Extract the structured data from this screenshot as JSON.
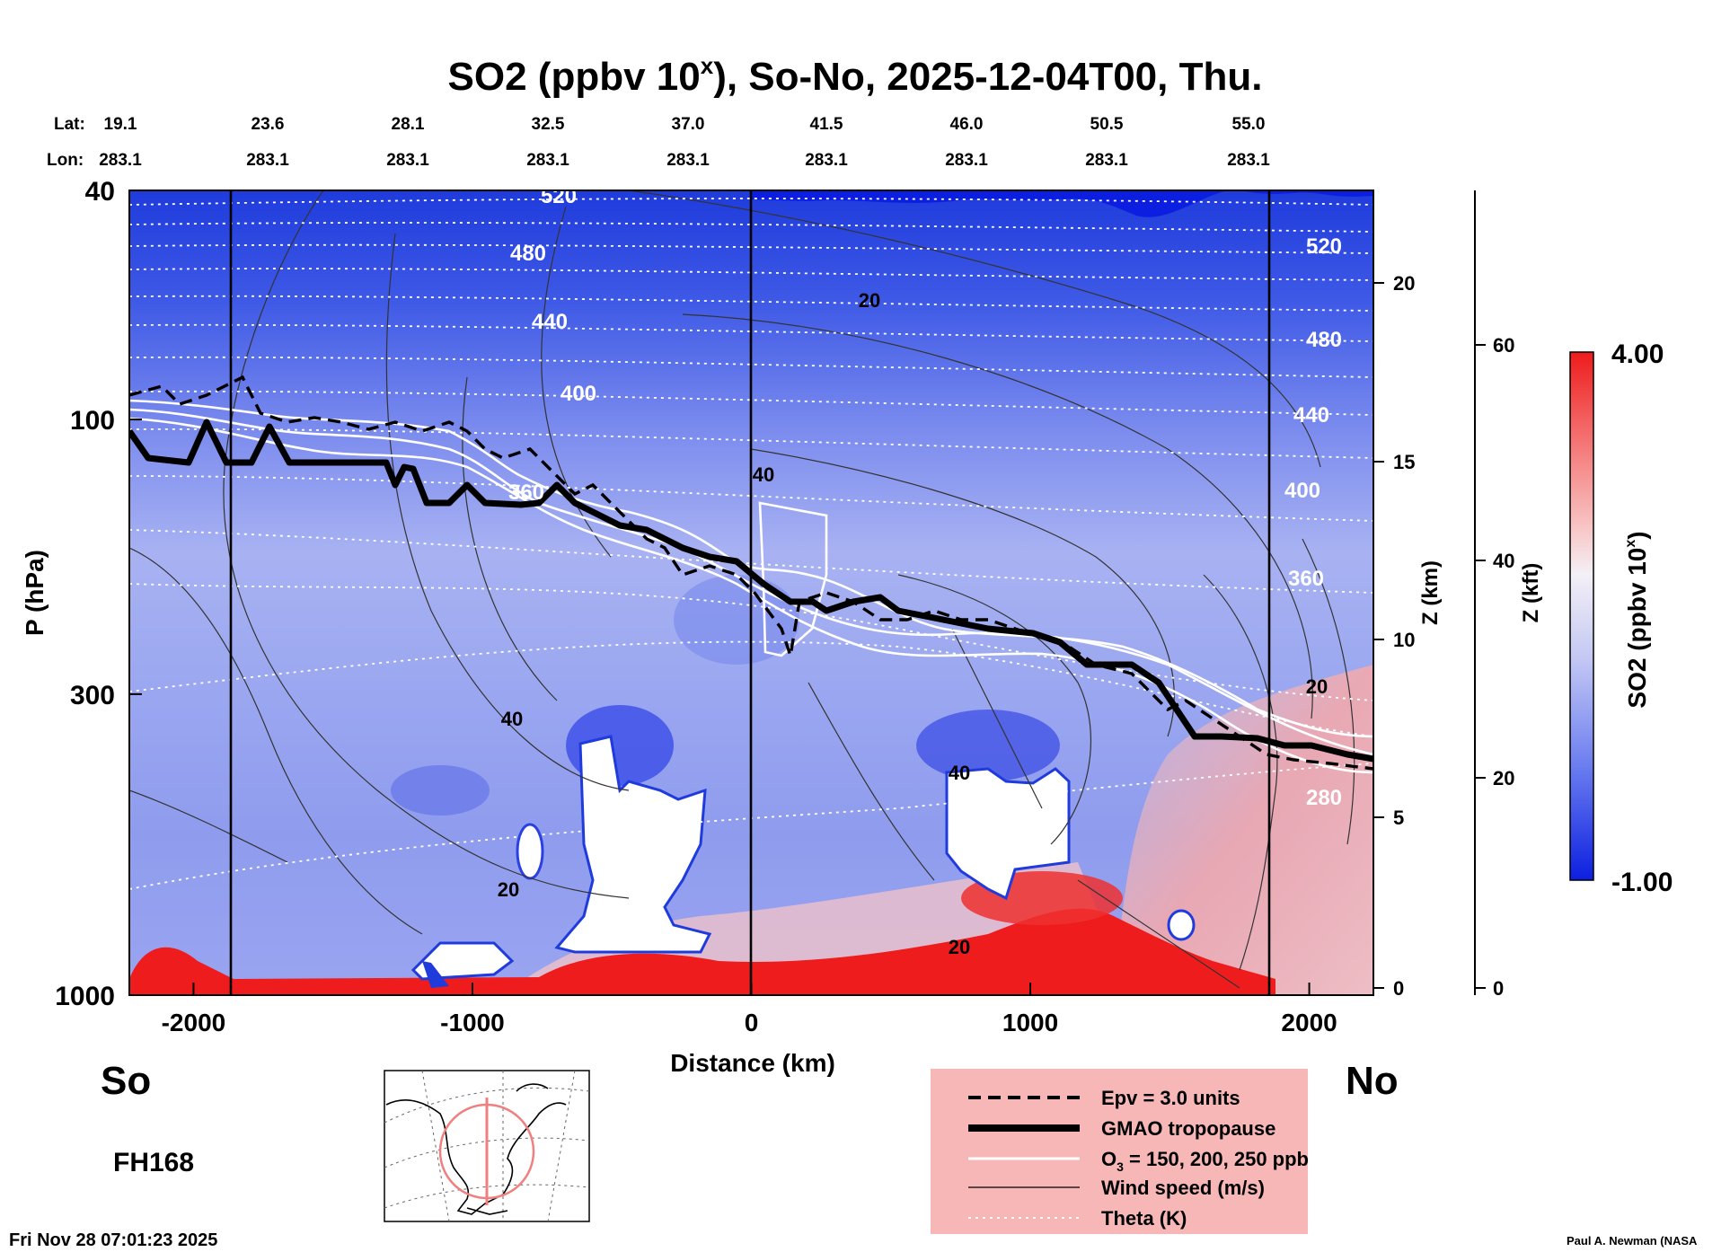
{
  "chart_data": {
    "type": "heatmap",
    "title_main": "SO2 (ppbv 10",
    "title_exp": "x",
    "title_rest": "), So-No, 2025-12-04T00, Thu.",
    "xlabel": "Distance (km)",
    "ylabel": "P (hPa)",
    "y2label": "Z (km)",
    "y3label": "Z (kft)",
    "xlim": [
      -2230,
      2230
    ],
    "x_ticks": [
      "-2000",
      "-1000",
      "0",
      "1000",
      "2000"
    ],
    "x_tick_values": [
      -2000,
      -1000,
      0,
      1000,
      2000
    ],
    "y_ticks": [
      "40",
      "100",
      "300",
      "1000"
    ],
    "y_tick_values": [
      40,
      100,
      300,
      1000
    ],
    "ylim_hpa": [
      1000,
      40
    ],
    "z_km_ticks": [
      "20",
      "15",
      "10",
      "5",
      "0"
    ],
    "z_kft_ticks": [
      "60",
      "40",
      "20",
      "0"
    ],
    "lat_label": "Lat:",
    "lon_label": "Lon:",
    "lats": [
      "19.1",
      "23.6",
      "28.1",
      "32.5",
      "37.0",
      "41.5",
      "46.0",
      "50.5",
      "55.0"
    ],
    "lons": [
      "283.1",
      "283.1",
      "283.1",
      "283.1",
      "283.1",
      "283.1",
      "283.1",
      "283.1",
      "283.1"
    ],
    "section_start": "So",
    "section_end": "No",
    "theta_labels": [
      "520",
      "480",
      "440",
      "400",
      "360",
      "520",
      "480",
      "440",
      "400",
      "360",
      "280"
    ],
    "wind_labels": [
      "20",
      "40",
      "40",
      "20",
      "40",
      "20",
      "20"
    ],
    "colorbar": {
      "max": "4.00",
      "min": "-1.00",
      "label_main": "SO2 (ppbv 10",
      "label_exp": "x",
      "label_rest": ")"
    },
    "legend": [
      {
        "style": "dashed",
        "label": "Epv = 3.0 units"
      },
      {
        "style": "thick",
        "label": "GMAO tropopause"
      },
      {
        "style": "white",
        "label_main": "O",
        "label_sub": "3",
        "label_rest": " = 150, 200, 250 ppb"
      },
      {
        "style": "thin",
        "label": "Wind speed (m/s)"
      },
      {
        "style": "dotted",
        "label": "Theta (K)"
      }
    ]
  },
  "forecast_hour": "FH168",
  "timestamp": "Fri Nov 28 07:01:23 2025",
  "credit": "Paul A. Newman (NASA"
}
